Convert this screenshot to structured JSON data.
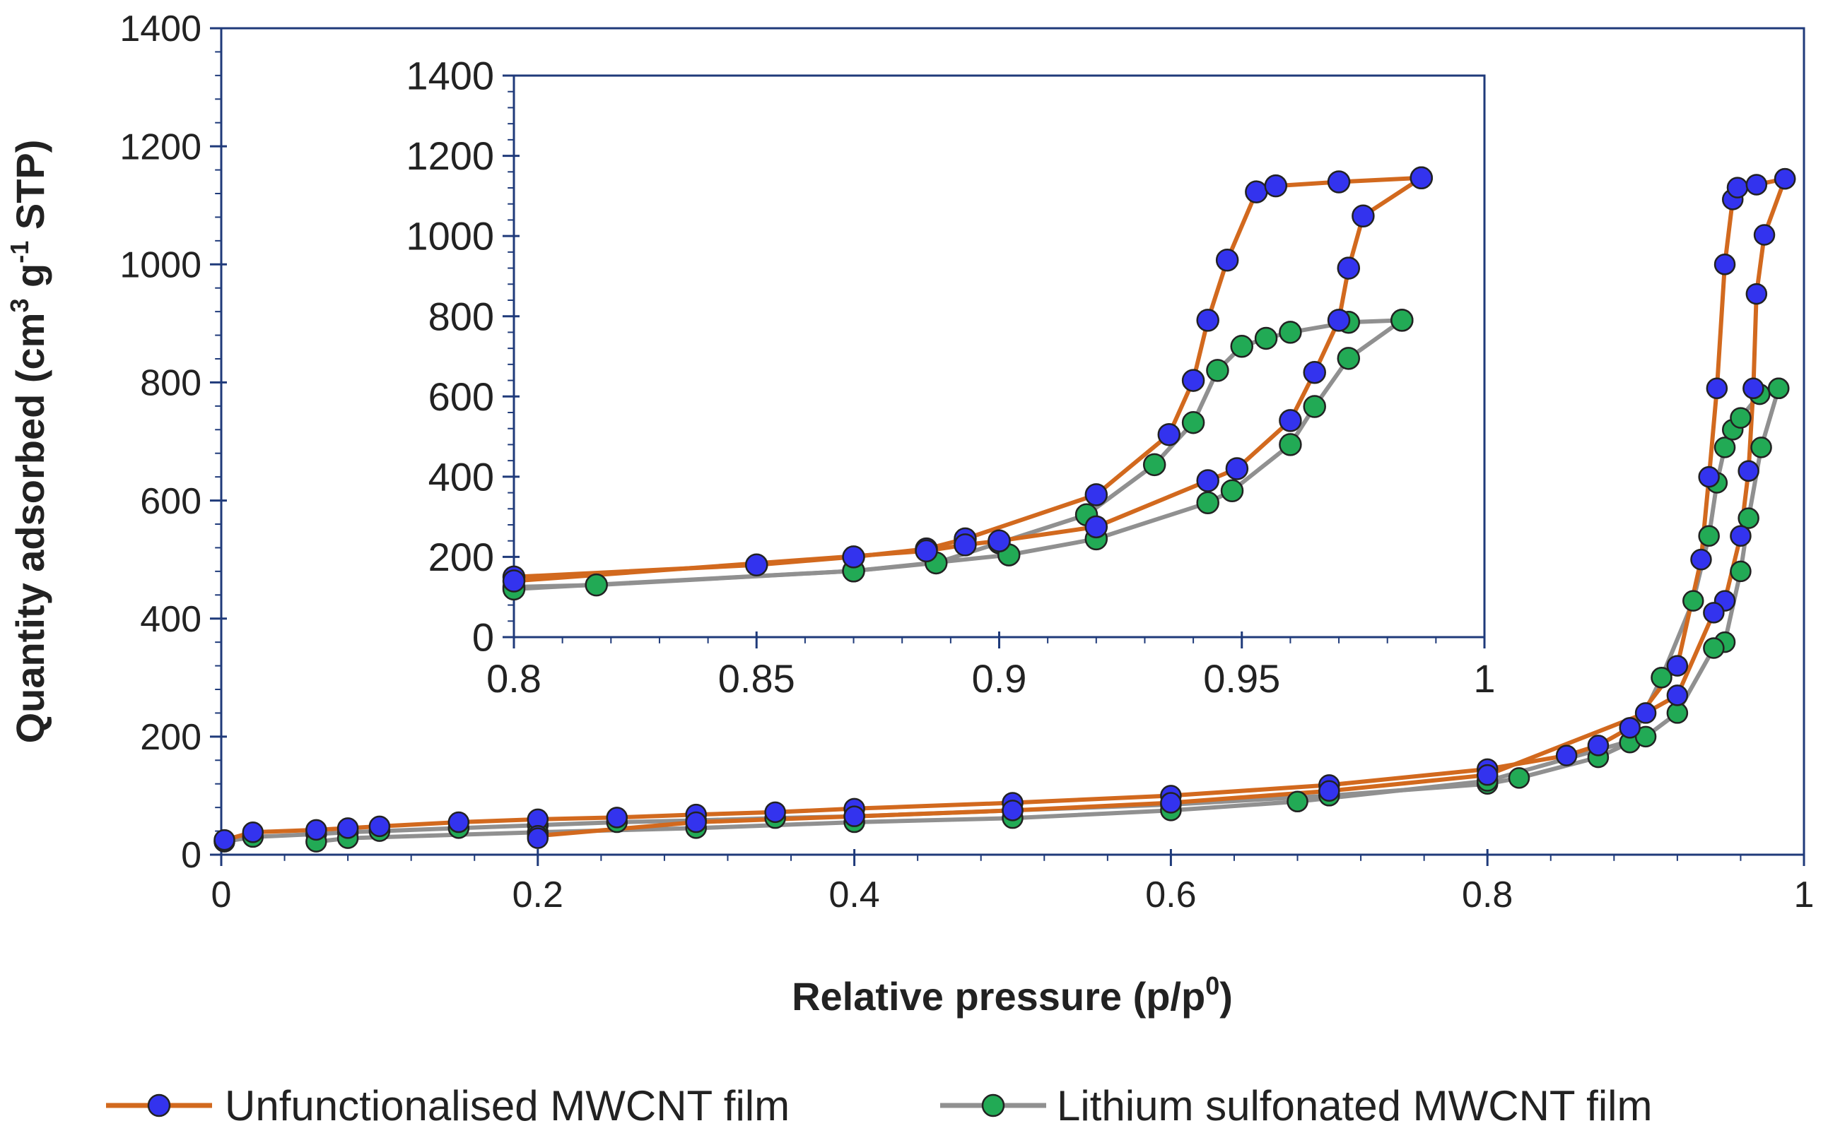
{
  "chart_data": [
    {
      "panel": "main",
      "type": "line",
      "xlabel": "Relative pressure (p/p0)",
      "ylabel": "Quantity adsorbed (cm3 g-1 STP)",
      "xlim": [
        0,
        1
      ],
      "ylim": [
        0,
        1400
      ],
      "x_ticks": [
        "0",
        "0.2",
        "0.4",
        "0.6",
        "0.8",
        "1"
      ],
      "y_ticks": [
        "0",
        "200",
        "400",
        "600",
        "800",
        "1000",
        "1200",
        "1400"
      ],
      "series": [
        {
          "name": "Unfunctionalised MWCNT film",
          "line_color": "#D2691E",
          "marker_color": "#3333EE",
          "adsorption": [
            [
              0.002,
              25
            ],
            [
              0.02,
              38
            ],
            [
              0.06,
              42
            ],
            [
              0.08,
              45
            ],
            [
              0.1,
              48
            ],
            [
              0.15,
              55
            ],
            [
              0.2,
              60
            ],
            [
              0.25,
              63
            ],
            [
              0.3,
              68
            ],
            [
              0.35,
              72
            ],
            [
              0.4,
              78
            ],
            [
              0.5,
              88
            ],
            [
              0.6,
              100
            ],
            [
              0.7,
              118
            ],
            [
              0.8,
              145
            ],
            [
              0.85,
              168
            ],
            [
              0.87,
              185
            ],
            [
              0.89,
              215
            ],
            [
              0.92,
              320
            ],
            [
              0.935,
              500
            ],
            [
              0.94,
              640
            ],
            [
              0.945,
              790
            ],
            [
              0.95,
              1000
            ],
            [
              0.955,
              1110
            ],
            [
              0.958,
              1130
            ],
            [
              0.97,
              1135
            ],
            [
              0.988,
              1145
            ]
          ],
          "desorption": [
            [
              0.988,
              1145
            ],
            [
              0.975,
              1050
            ],
            [
              0.97,
              950
            ],
            [
              0.968,
              790
            ],
            [
              0.965,
              650
            ],
            [
              0.96,
              540
            ],
            [
              0.95,
              430
            ],
            [
              0.943,
              410
            ],
            [
              0.92,
              270
            ],
            [
              0.9,
              240
            ],
            [
              0.8,
              135
            ],
            [
              0.7,
              108
            ],
            [
              0.6,
              88
            ],
            [
              0.5,
              75
            ],
            [
              0.4,
              65
            ],
            [
              0.3,
              55
            ],
            [
              0.2,
              32
            ],
            [
              0.2,
              28
            ]
          ]
        },
        {
          "name": "Lithium sulfonated MWCNT film",
          "line_color": "#909090",
          "marker_color": "#22AA55",
          "adsorption": [
            [
              0.002,
              22
            ],
            [
              0.02,
              30
            ],
            [
              0.06,
              35
            ],
            [
              0.08,
              38
            ],
            [
              0.1,
              40
            ],
            [
              0.15,
              45
            ],
            [
              0.2,
              50
            ],
            [
              0.25,
              55
            ],
            [
              0.3,
              58
            ],
            [
              0.35,
              62
            ],
            [
              0.4,
              65
            ],
            [
              0.5,
              75
            ],
            [
              0.6,
              85
            ],
            [
              0.7,
              100
            ],
            [
              0.8,
              120
            ],
            [
              0.82,
              130
            ],
            [
              0.87,
              165
            ],
            [
              0.89,
              190
            ],
            [
              0.91,
              300
            ],
            [
              0.93,
              430
            ],
            [
              0.94,
              540
            ],
            [
              0.945,
              630
            ],
            [
              0.95,
              690
            ],
            [
              0.955,
              720
            ],
            [
              0.96,
              740
            ],
            [
              0.972,
              780
            ],
            [
              0.984,
              790
            ]
          ],
          "desorption": [
            [
              0.984,
              790
            ],
            [
              0.973,
              690
            ],
            [
              0.965,
              570
            ],
            [
              0.96,
              480
            ],
            [
              0.95,
              360
            ],
            [
              0.943,
              350
            ],
            [
              0.92,
              240
            ],
            [
              0.9,
              200
            ],
            [
              0.8,
              125
            ],
            [
              0.68,
              90
            ],
            [
              0.6,
              75
            ],
            [
              0.5,
              62
            ],
            [
              0.4,
              55
            ],
            [
              0.3,
              45
            ],
            [
              0.2,
              38
            ],
            [
              0.08,
              28
            ],
            [
              0.06,
              22
            ]
          ]
        }
      ]
    },
    {
      "panel": "inset",
      "type": "line",
      "xlim": [
        0.8,
        1
      ],
      "ylim": [
        0,
        1400
      ],
      "x_ticks": [
        "0.8",
        "0.85",
        "0.9",
        "0.95",
        "1"
      ],
      "y_ticks": [
        "0",
        "200",
        "400",
        "600",
        "800",
        "1000",
        "1200",
        "1400"
      ],
      "series": [
        {
          "name": "Unfunctionalised MWCNT film",
          "line_color": "#D2691E",
          "marker_color": "#3333EE",
          "adsorption": [
            [
              0.8,
              150
            ],
            [
              0.85,
              180
            ],
            [
              0.87,
              200
            ],
            [
              0.885,
              220
            ],
            [
              0.893,
              245
            ],
            [
              0.92,
              355
            ],
            [
              0.935,
              505
            ],
            [
              0.94,
              640
            ],
            [
              0.943,
              790
            ],
            [
              0.947,
              940
            ],
            [
              0.953,
              1110
            ],
            [
              0.957,
              1125
            ],
            [
              0.97,
              1135
            ],
            [
              0.987,
              1145
            ]
          ],
          "desorption": [
            [
              0.987,
              1145
            ],
            [
              0.975,
              1050
            ],
            [
              0.972,
              920
            ],
            [
              0.97,
              790
            ],
            [
              0.965,
              660
            ],
            [
              0.96,
              540
            ],
            [
              0.949,
              420
            ],
            [
              0.943,
              390
            ],
            [
              0.92,
              275
            ],
            [
              0.9,
              240
            ],
            [
              0.893,
              230
            ],
            [
              0.885,
              215
            ],
            [
              0.8,
              140
            ]
          ]
        },
        {
          "name": "Lithium sulfonated MWCNT film",
          "line_color": "#909090",
          "marker_color": "#22AA55",
          "adsorption": [
            [
              0.8,
              125
            ],
            [
              0.817,
              130
            ],
            [
              0.87,
              165
            ],
            [
              0.887,
              185
            ],
            [
              0.9,
              235
            ],
            [
              0.918,
              305
            ],
            [
              0.932,
              430
            ],
            [
              0.94,
              535
            ],
            [
              0.945,
              665
            ],
            [
              0.95,
              725
            ],
            [
              0.955,
              745
            ],
            [
              0.96,
              760
            ],
            [
              0.972,
              785
            ],
            [
              0.983,
              790
            ]
          ],
          "desorption": [
            [
              0.983,
              790
            ],
            [
              0.972,
              695
            ],
            [
              0.965,
              575
            ],
            [
              0.96,
              480
            ],
            [
              0.948,
              365
            ],
            [
              0.943,
              335
            ],
            [
              0.92,
              245
            ],
            [
              0.902,
              205
            ],
            [
              0.87,
              165
            ],
            [
              0.8,
              120
            ]
          ]
        }
      ]
    }
  ],
  "legend": [
    {
      "label": "Unfunctionalised MWCNT film",
      "line_color": "#D2691E",
      "marker_color": "#3333EE"
    },
    {
      "label": "Lithium sulfonated MWCNT film",
      "line_color": "#909090",
      "marker_color": "#22AA55"
    }
  ],
  "axis_color": "#1F3A7A"
}
